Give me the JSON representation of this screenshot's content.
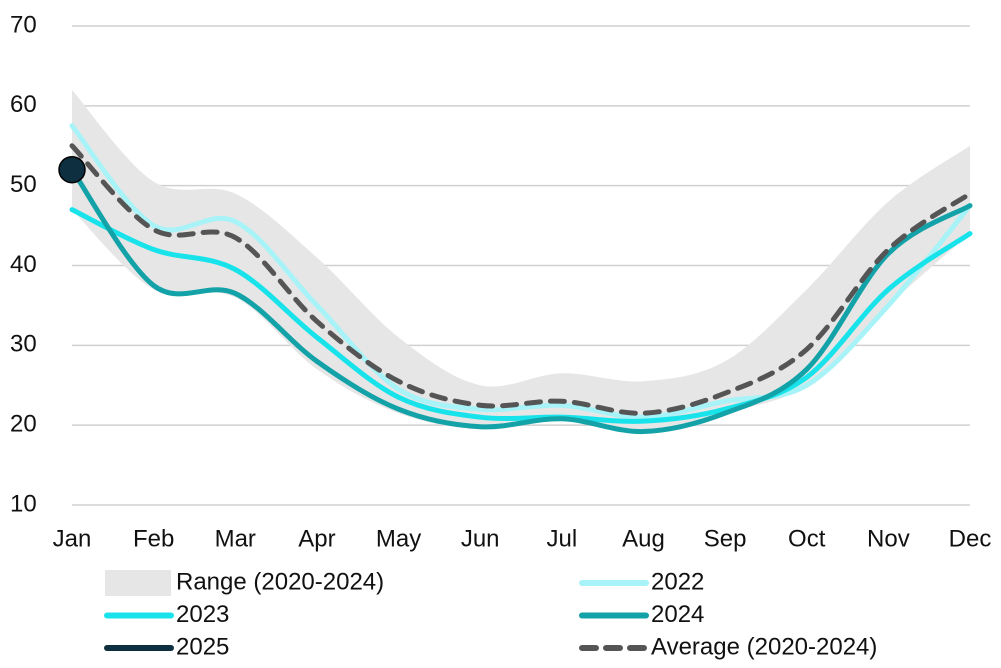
{
  "chart_data": {
    "type": "line",
    "categories": [
      "Jan",
      "Feb",
      "Mar",
      "Apr",
      "May",
      "Jun",
      "Jul",
      "Aug",
      "Sep",
      "Oct",
      "Nov",
      "Dec"
    ],
    "ylim": [
      10,
      70
    ],
    "yticks": [
      10,
      20,
      30,
      40,
      50,
      60,
      70
    ],
    "grid": true,
    "series": [
      {
        "name": "Range (2020-2024)",
        "color": "#e6e6e6",
        "kind": "band",
        "upper": [
          62,
          50.5,
          49,
          41,
          31,
          25,
          26.5,
          25.5,
          28,
          37,
          48,
          55
        ],
        "lower": [
          47,
          37,
          36,
          27,
          21.5,
          19.5,
          20.5,
          19,
          21.5,
          25,
          35,
          44
        ]
      },
      {
        "name": "2022",
        "color": "#a8f3f7",
        "values": [
          57.5,
          45,
          45.5,
          35,
          24.5,
          22,
          22.5,
          21,
          23,
          25,
          35,
          47.5
        ]
      },
      {
        "name": "2023",
        "color": "#19e3ea",
        "values": [
          47,
          42,
          39.5,
          31,
          23.5,
          21,
          21,
          20.5,
          22,
          26,
          37,
          44
        ]
      },
      {
        "name": "2024",
        "color": "#12a2a8",
        "values": [
          52,
          37.5,
          36.5,
          28,
          22,
          19.8,
          20.8,
          19.2,
          21.5,
          27,
          41.5,
          47.5
        ]
      },
      {
        "name": "2025",
        "color": "#0d2f3f",
        "marker": true,
        "values": [
          52,
          null,
          null,
          null,
          null,
          null,
          null,
          null,
          null,
          null,
          null,
          null
        ]
      },
      {
        "name": "Average (2020-2024)",
        "color": "#555555",
        "dashed": true,
        "values": [
          55,
          44.5,
          43.5,
          33,
          25.5,
          22.5,
          23,
          21.5,
          24,
          29.5,
          42,
          49
        ]
      }
    ]
  }
}
